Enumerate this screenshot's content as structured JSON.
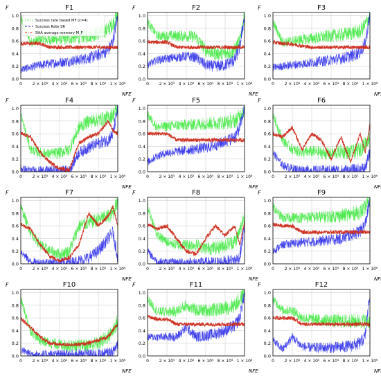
{
  "chart_data": {
    "type": "line",
    "layout": "3 columns x 4 rows",
    "xlabel": "NFE",
    "ylabel": "F",
    "xlim": [
      0,
      1000000
    ],
    "ylim": [
      0,
      1.05
    ],
    "yticks": [
      "0.0",
      "0.2",
      "0.4",
      "0.6",
      "0.8",
      "1.0"
    ],
    "xticks": [
      "0",
      "2 × 10⁵",
      "4 × 10⁵",
      "6 × 10⁵",
      "8 × 10⁵",
      "1 × 10⁶"
    ],
    "grid": true,
    "legend": {
      "position": "top-left of F1",
      "entries": [
        {
          "label": "Success rate based MF (c=4)",
          "color": "#22dd22",
          "style": "dotted"
        },
        {
          "label": "Success Rate SR",
          "color": "#2222dd",
          "style": "dashed"
        },
        {
          "label": "SHA average memory M_F",
          "color": "#dd2222",
          "style": "dashdot"
        }
      ]
    },
    "colors": {
      "green": "#3ee83e",
      "blue": "#2b2bea",
      "red": "#cc2a1a"
    },
    "x": [
      0,
      100000,
      200000,
      300000,
      400000,
      500000,
      600000,
      700000,
      800000,
      900000,
      950000,
      1000000
    ],
    "panels": [
      {
        "title": "F1",
        "green": [
          0.95,
          0.58,
          0.62,
          0.62,
          0.63,
          0.64,
          0.66,
          0.68,
          0.72,
          0.78,
          0.88,
          1.0
        ],
        "blue": [
          0.15,
          0.18,
          0.22,
          0.24,
          0.26,
          0.28,
          0.3,
          0.33,
          0.38,
          0.45,
          0.6,
          1.0
        ],
        "red": [
          0.56,
          0.56,
          0.56,
          0.5,
          0.5,
          0.5,
          0.5,
          0.5,
          0.5,
          0.5,
          0.5,
          0.5
        ]
      },
      {
        "title": "F2",
        "green": [
          0.9,
          0.68,
          0.68,
          0.68,
          0.68,
          0.66,
          0.45,
          0.4,
          0.4,
          0.45,
          0.6,
          1.0
        ],
        "blue": [
          0.22,
          0.3,
          0.32,
          0.34,
          0.36,
          0.34,
          0.22,
          0.2,
          0.22,
          0.3,
          0.5,
          1.0
        ],
        "red": [
          0.58,
          0.58,
          0.58,
          0.5,
          0.5,
          0.5,
          0.5,
          0.5,
          0.5,
          0.5,
          0.5,
          0.5
        ]
      },
      {
        "title": "F3",
        "green": [
          0.9,
          0.58,
          0.6,
          0.62,
          0.64,
          0.66,
          0.68,
          0.7,
          0.72,
          0.75,
          0.85,
          1.0
        ],
        "blue": [
          0.18,
          0.2,
          0.22,
          0.24,
          0.26,
          0.28,
          0.3,
          0.32,
          0.36,
          0.42,
          0.55,
          1.0
        ],
        "red": [
          0.58,
          0.56,
          0.55,
          0.52,
          0.5,
          0.5,
          0.5,
          0.5,
          0.5,
          0.5,
          0.5,
          0.5
        ]
      },
      {
        "title": "F4",
        "green": [
          0.9,
          0.35,
          0.3,
          0.28,
          0.3,
          0.35,
          0.7,
          0.8,
          0.82,
          0.85,
          0.9,
          1.0
        ],
        "blue": [
          0.05,
          0.02,
          0.02,
          0.02,
          0.02,
          0.02,
          0.3,
          0.38,
          0.45,
          0.5,
          0.6,
          1.0
        ],
        "red": [
          0.6,
          0.55,
          0.3,
          0.15,
          0.05,
          0.03,
          0.45,
          0.55,
          0.6,
          0.8,
          0.65,
          0.6
        ]
      },
      {
        "title": "F5",
        "green": [
          0.9,
          0.7,
          0.72,
          0.73,
          0.74,
          0.75,
          0.76,
          0.77,
          0.78,
          0.8,
          0.88,
          1.0
        ],
        "blue": [
          0.15,
          0.25,
          0.3,
          0.32,
          0.34,
          0.36,
          0.38,
          0.42,
          0.48,
          0.55,
          0.7,
          1.0
        ],
        "red": [
          0.6,
          0.6,
          0.6,
          0.5,
          0.5,
          0.5,
          0.5,
          0.5,
          0.5,
          0.5,
          0.5,
          0.5
        ]
      },
      {
        "title": "F6",
        "green": [
          0.9,
          0.5,
          0.35,
          0.3,
          0.32,
          0.3,
          0.28,
          0.32,
          0.3,
          0.35,
          0.45,
          0.55
        ],
        "blue": [
          0.3,
          0.1,
          0.05,
          0.03,
          0.02,
          0.02,
          0.02,
          0.02,
          0.02,
          0.03,
          0.05,
          0.3
        ],
        "red": [
          0.6,
          0.55,
          0.7,
          0.35,
          0.6,
          0.5,
          0.2,
          0.55,
          0.15,
          0.6,
          0.3,
          0.75
        ]
      },
      {
        "title": "F7",
        "green": [
          0.9,
          0.5,
          0.3,
          0.2,
          0.15,
          0.2,
          0.6,
          0.65,
          0.7,
          0.75,
          0.8,
          1.0
        ],
        "blue": [
          0.2,
          0.03,
          0.02,
          0.02,
          0.02,
          0.02,
          0.05,
          0.1,
          0.2,
          0.4,
          0.5,
          0.1
        ],
        "red": [
          0.62,
          0.55,
          0.3,
          0.12,
          0.05,
          0.1,
          0.3,
          0.8,
          0.6,
          0.75,
          0.9,
          0.6
        ]
      },
      {
        "title": "F8",
        "green": [
          0.9,
          0.45,
          0.35,
          0.3,
          0.3,
          0.3,
          0.25,
          0.25,
          0.3,
          0.35,
          0.5,
          0.8
        ],
        "blue": [
          0.2,
          0.03,
          0.02,
          0.02,
          0.02,
          0.02,
          0.02,
          0.02,
          0.03,
          0.05,
          0.1,
          0.6
        ],
        "red": [
          0.62,
          0.55,
          0.6,
          0.4,
          0.2,
          0.15,
          0.4,
          0.6,
          0.45,
          0.6,
          0.3,
          0.65
        ]
      },
      {
        "title": "F9",
        "green": [
          0.9,
          0.72,
          0.73,
          0.73,
          0.74,
          0.74,
          0.75,
          0.76,
          0.78,
          0.82,
          0.88,
          1.0
        ],
        "blue": [
          0.2,
          0.3,
          0.32,
          0.34,
          0.35,
          0.36,
          0.38,
          0.4,
          0.45,
          0.52,
          0.62,
          1.0
        ],
        "red": [
          0.62,
          0.6,
          0.6,
          0.5,
          0.5,
          0.5,
          0.5,
          0.5,
          0.5,
          0.5,
          0.5,
          0.5
        ]
      },
      {
        "title": "F10",
        "green": [
          0.9,
          0.4,
          0.25,
          0.2,
          0.18,
          0.16,
          0.16,
          0.17,
          0.2,
          0.3,
          0.4,
          0.55
        ],
        "blue": [
          0.1,
          0.03,
          0.02,
          0.02,
          0.02,
          0.02,
          0.02,
          0.02,
          0.02,
          0.03,
          0.05,
          0.2
        ],
        "red": [
          0.6,
          0.45,
          0.3,
          0.2,
          0.18,
          0.18,
          0.18,
          0.2,
          0.25,
          0.3,
          0.4,
          0.5
        ]
      },
      {
        "title": "F11",
        "green": [
          0.9,
          0.7,
          0.7,
          0.7,
          0.8,
          0.72,
          0.72,
          0.73,
          0.75,
          0.8,
          0.88,
          1.0
        ],
        "blue": [
          0.3,
          0.3,
          0.3,
          0.3,
          0.45,
          0.3,
          0.32,
          0.35,
          0.4,
          0.48,
          0.6,
          1.0
        ],
        "red": [
          0.62,
          0.58,
          0.58,
          0.5,
          0.5,
          0.5,
          0.5,
          0.5,
          0.5,
          0.5,
          0.5,
          0.5
        ]
      },
      {
        "title": "F12",
        "green": [
          0.9,
          0.72,
          0.72,
          0.6,
          0.58,
          0.57,
          0.56,
          0.55,
          0.55,
          0.55,
          0.55,
          0.55
        ],
        "blue": [
          0.25,
          0.1,
          0.3,
          0.15,
          0.13,
          0.13,
          0.13,
          0.14,
          0.16,
          0.2,
          0.3,
          1.0
        ],
        "red": [
          0.6,
          0.6,
          0.6,
          0.5,
          0.5,
          0.5,
          0.5,
          0.5,
          0.5,
          0.5,
          0.5,
          0.5
        ]
      }
    ]
  }
}
